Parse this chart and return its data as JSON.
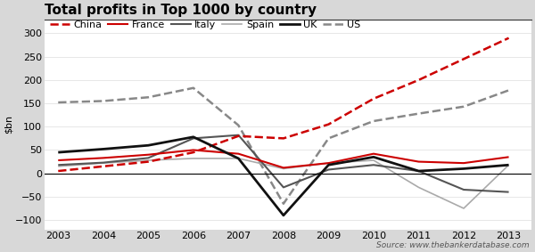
{
  "title": "Total profits in Top 1000 by country",
  "ylabel": "$bn",
  "source": "Source: www.thebankerdatabase.com",
  "years": [
    2003,
    2004,
    2005,
    2006,
    2007,
    2008,
    2009,
    2010,
    2011,
    2012,
    2013
  ],
  "series": {
    "China": {
      "values": [
        5,
        15,
        25,
        45,
        80,
        75,
        105,
        160,
        200,
        245,
        290
      ],
      "color": "#cc0000",
      "linestyle": "dashed",
      "linewidth": 1.8,
      "zorder": 5
    },
    "France": {
      "values": [
        28,
        33,
        40,
        50,
        42,
        12,
        22,
        42,
        25,
        22,
        35
      ],
      "color": "#cc0000",
      "linestyle": "solid",
      "linewidth": 1.5,
      "zorder": 4
    },
    "Italy": {
      "values": [
        18,
        23,
        33,
        75,
        82,
        -30,
        8,
        18,
        5,
        -35,
        -40
      ],
      "color": "#555555",
      "linestyle": "solid",
      "linewidth": 1.5,
      "zorder": 3
    },
    "Spain": {
      "values": [
        15,
        22,
        28,
        32,
        32,
        10,
        22,
        28,
        -30,
        -75,
        18
      ],
      "color": "#aaaaaa",
      "linestyle": "solid",
      "linewidth": 1.2,
      "zorder": 2
    },
    "UK": {
      "values": [
        45,
        52,
        60,
        78,
        32,
        -90,
        18,
        35,
        5,
        10,
        18
      ],
      "color": "#111111",
      "linestyle": "solid",
      "linewidth": 2.0,
      "zorder": 6
    },
    "US": {
      "values": [
        152,
        155,
        163,
        183,
        103,
        -65,
        75,
        112,
        128,
        143,
        178
      ],
      "color": "#888888",
      "linestyle": "dashed",
      "linewidth": 1.8,
      "zorder": 1
    }
  },
  "ylim": [
    -120,
    330
  ],
  "yticks": [
    -100,
    -50,
    0,
    50,
    100,
    150,
    200,
    250,
    300
  ],
  "hatch_color": "#cccccc",
  "plot_bg": "#ffffff",
  "fig_bg": "#cccccc",
  "title_fontsize": 11,
  "label_fontsize": 8,
  "legend_fontsize": 8
}
